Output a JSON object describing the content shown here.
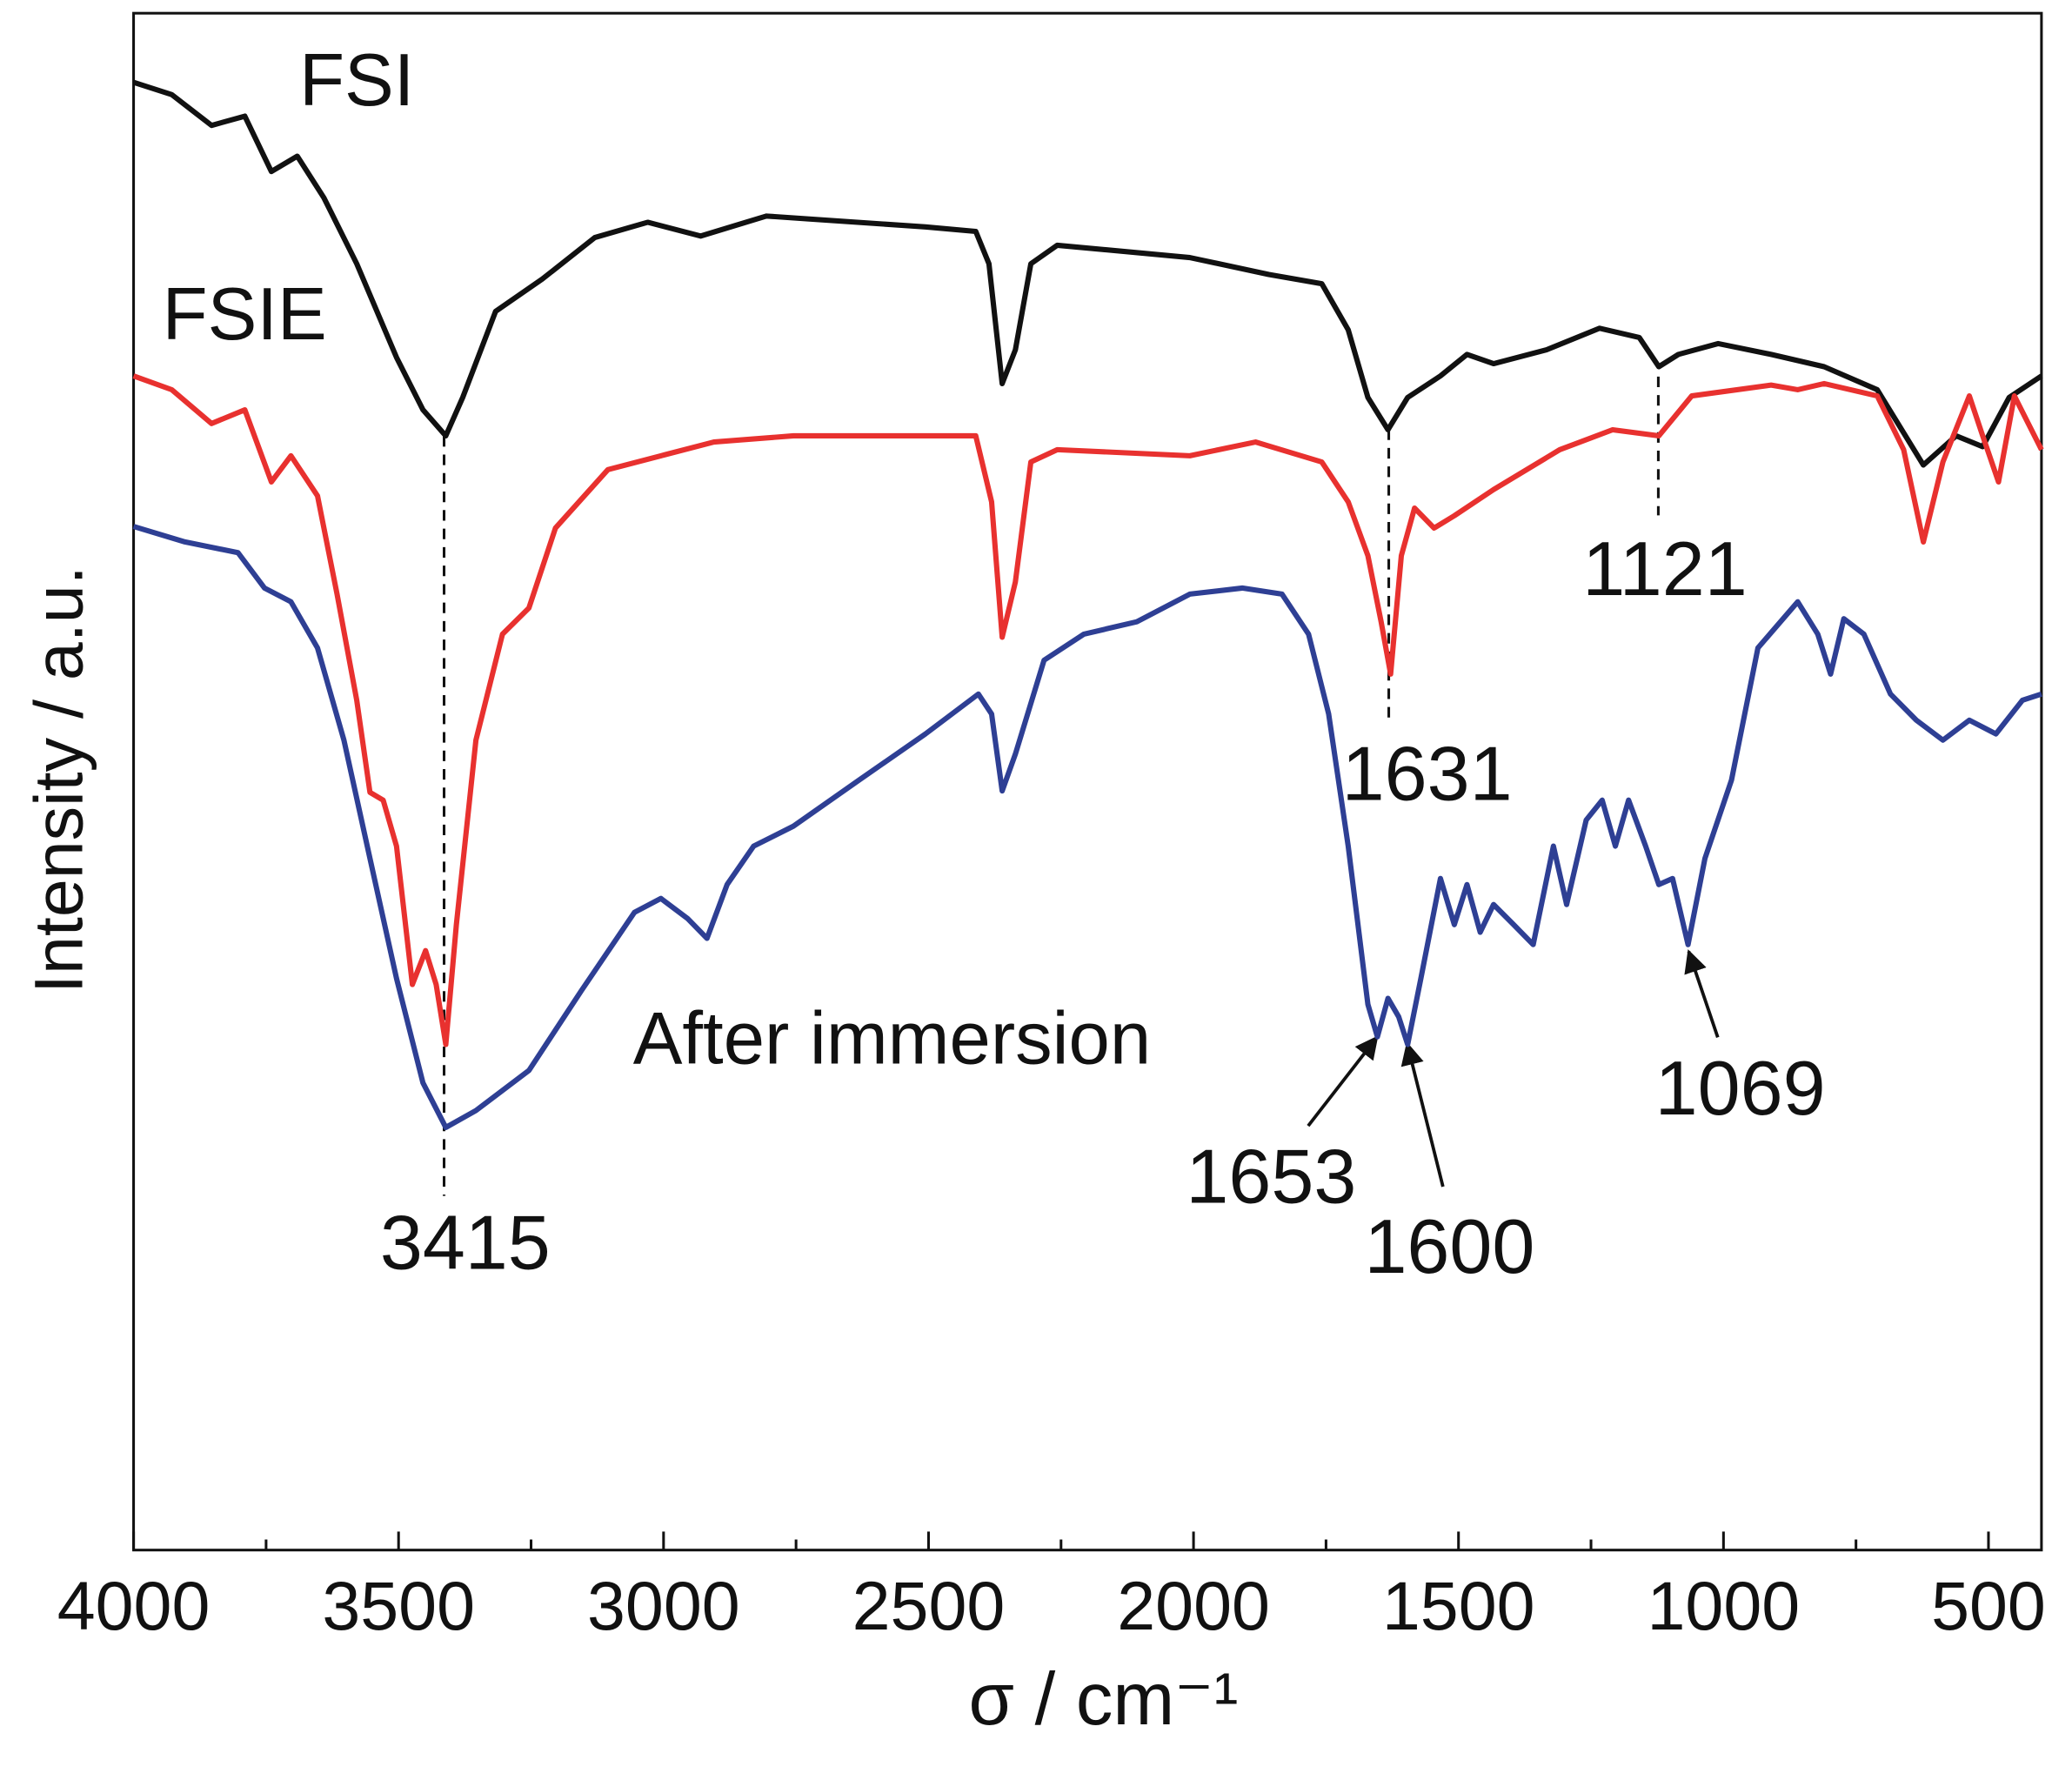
{
  "chart_data": {
    "type": "line",
    "xlabel": "σ / cm⁻¹",
    "ylabel": "Intensity / a.u.",
    "xlim": [
      4000,
      400
    ],
    "xticks": [
      4000,
      3500,
      3000,
      2500,
      2000,
      1500,
      1000,
      500
    ],
    "xminorticks": [
      3750,
      3250,
      2750,
      2250,
      1750,
      1250,
      750
    ],
    "ylim": [
      0,
      100
    ],
    "series": [
      {
        "name": "FSI",
        "color": "#111111",
        "x": [
          4000,
          3928,
          3853,
          3790,
          3740,
          3691,
          3641,
          3579,
          3504,
          3454,
          3411,
          3379,
          3317,
          3229,
          3130,
          3030,
          2930,
          2806,
          2506,
          2411,
          2386,
          2361,
          2336,
          2307,
          2257,
          2007,
          1858,
          1758,
          1708,
          1671,
          1633,
          1596,
          1534,
          1484,
          1434,
          1334,
          1234,
          1159,
          1122,
          1085,
          1010,
          910,
          810,
          710,
          623,
          561,
          511,
          461,
          400
        ],
        "values": [
          95.5,
          94.7,
          92.7,
          93.3,
          89.7,
          90.7,
          88.0,
          83.7,
          77.6,
          74.2,
          72.5,
          75.0,
          80.6,
          82.7,
          85.4,
          86.4,
          85.5,
          86.8,
          86.1,
          85.8,
          83.7,
          75.9,
          78.1,
          83.7,
          84.9,
          84.1,
          83.0,
          82.4,
          79.4,
          75.0,
          72.9,
          75.0,
          76.4,
          77.8,
          77.2,
          78.1,
          79.5,
          78.9,
          77.0,
          77.8,
          78.5,
          77.8,
          77.0,
          75.5,
          70.6,
          72.5,
          71.8,
          75.0,
          76.4
        ]
      },
      {
        "name": "FSIE",
        "color": "#e8312f",
        "x": [
          4000,
          3928,
          3853,
          3790,
          3740,
          3703,
          3653,
          3616,
          3579,
          3554,
          3529,
          3504,
          3474,
          3449,
          3429,
          3411,
          3391,
          3354,
          3304,
          3254,
          3204,
          3105,
          3005,
          2905,
          2755,
          2411,
          2381,
          2361,
          2336,
          2307,
          2257,
          2007,
          1883,
          1758,
          1708,
          1671,
          1646,
          1628,
          1608,
          1583,
          1546,
          1508,
          1434,
          1309,
          1209,
          1122,
          1060,
          910,
          860,
          810,
          710,
          660,
          623,
          586,
          536,
          511,
          481,
          451,
          400
        ],
        "values": [
          76.4,
          75.5,
          73.3,
          74.2,
          69.5,
          71.2,
          68.6,
          62.2,
          55.3,
          49.3,
          48.8,
          45.8,
          36.8,
          39.0,
          36.8,
          32.9,
          40.7,
          52.7,
          59.6,
          61.3,
          66.5,
          70.3,
          71.2,
          72.1,
          72.5,
          72.5,
          68.2,
          59.4,
          63.0,
          70.8,
          71.6,
          71.2,
          72.1,
          70.8,
          68.2,
          64.7,
          60.4,
          57.0,
          64.7,
          67.8,
          66.5,
          67.3,
          69.0,
          71.6,
          72.9,
          72.5,
          75.1,
          75.8,
          75.5,
          75.9,
          75.1,
          71.6,
          65.6,
          70.8,
          75.1,
          72.5,
          69.5,
          75.1,
          71.6
        ]
      },
      {
        "name": "After immersion",
        "color": "#2e3f94",
        "x": [
          4000,
          3903,
          3803,
          3753,
          3703,
          3653,
          3603,
          3554,
          3504,
          3454,
          3411,
          3354,
          3254,
          3155,
          3055,
          3005,
          2955,
          2918,
          2880,
          2830,
          2755,
          2631,
          2506,
          2406,
          2381,
          2361,
          2336,
          2282,
          2207,
          2107,
          2007,
          1908,
          1833,
          1783,
          1745,
          1708,
          1671,
          1653,
          1633,
          1613,
          1596,
          1571,
          1534,
          1508,
          1484,
          1459,
          1434,
          1396,
          1359,
          1321,
          1296,
          1259,
          1229,
          1204,
          1179,
          1147,
          1122,
          1096,
          1067,
          1035,
          985,
          935,
          860,
          822,
          798,
          773,
          735,
          685,
          636,
          586,
          536,
          486,
          436,
          400
        ],
        "values": [
          66.6,
          65.6,
          64.9,
          62.6,
          61.7,
          58.7,
          52.7,
          45.0,
          37.2,
          30.4,
          27.5,
          28.6,
          31.2,
          36.4,
          41.5,
          42.4,
          41.1,
          39.8,
          43.3,
          45.8,
          47.1,
          50.1,
          53.1,
          55.7,
          54.4,
          49.4,
          51.8,
          57.9,
          59.6,
          60.4,
          62.2,
          62.6,
          62.2,
          59.6,
          54.4,
          45.8,
          35.5,
          33.4,
          35.9,
          34.7,
          32.9,
          37.2,
          43.7,
          40.7,
          43.3,
          40.2,
          42.0,
          40.7,
          39.4,
          45.8,
          42.0,
          47.5,
          48.8,
          45.8,
          48.8,
          45.8,
          43.3,
          43.7,
          39.4,
          45.0,
          50.1,
          58.7,
          61.7,
          59.6,
          57.0,
          60.6,
          59.6,
          55.7,
          54.0,
          52.7,
          54.0,
          53.1,
          55.3,
          55.7
        ]
      }
    ],
    "annotations": [
      "3415",
      "1631",
      "1121",
      "1653",
      "1600",
      "1069"
    ]
  }
}
